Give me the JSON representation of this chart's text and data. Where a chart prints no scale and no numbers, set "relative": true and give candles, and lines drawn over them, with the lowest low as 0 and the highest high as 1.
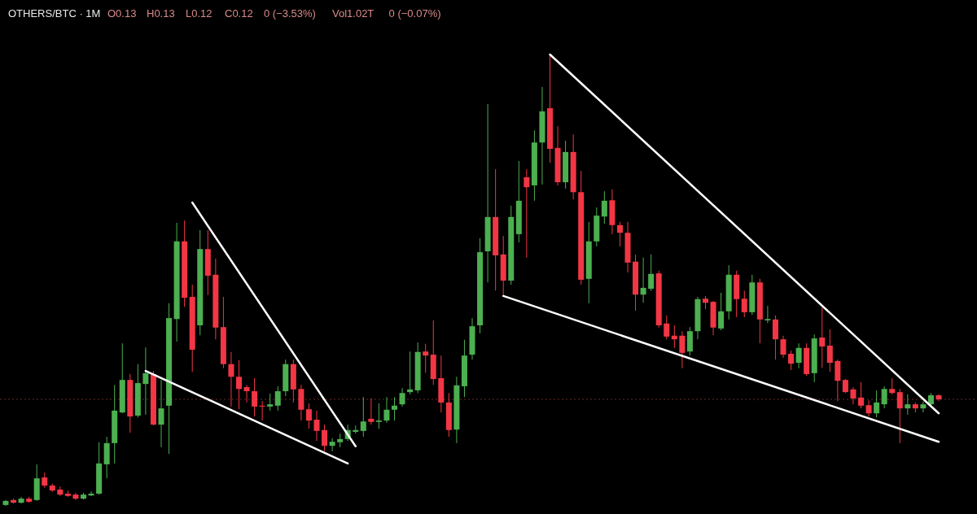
{
  "chart_data": {
    "type": "candlestick",
    "title": "OTHERS/BTC · 1M",
    "relative": true,
    "annotations": [
      "O0.13",
      "H0.13",
      "L0.12",
      "C0.12",
      "0 (−3.53%)",
      "Vol1.02T",
      "0 (−0.07%)"
    ],
    "categories": [
      null,
      null,
      null,
      null,
      null,
      null,
      null,
      null,
      null,
      null,
      null,
      null,
      null,
      null,
      null,
      null,
      null,
      null,
      null,
      null,
      null,
      null,
      null,
      null,
      null,
      null,
      null,
      null,
      null,
      null,
      null,
      null,
      null,
      null,
      null,
      null,
      null,
      null,
      null,
      null,
      null,
      null,
      null,
      null,
      null,
      null,
      null,
      null,
      null,
      null,
      null,
      null,
      null,
      null,
      null,
      null,
      null,
      null,
      null,
      null,
      null,
      null,
      null,
      null,
      null,
      null,
      null,
      null,
      null,
      null,
      null,
      null,
      null,
      null,
      null,
      null,
      null,
      null,
      null,
      null,
      null,
      null,
      null,
      null,
      null,
      null,
      null,
      null,
      null,
      null,
      null,
      null,
      null,
      null,
      null,
      null,
      null,
      null,
      null,
      null,
      null,
      null,
      null,
      null,
      null,
      null,
      null,
      null,
      null,
      null,
      null,
      null,
      null,
      null,
      null,
      null,
      null,
      null,
      null,
      null,
      null
    ],
    "ohlc": [
      [
        0.002,
        0.013,
        0,
        0.011
      ],
      [
        0.013,
        0.016,
        0.005,
        0.007
      ],
      [
        0.007,
        0.02,
        0.005,
        0.016
      ],
      [
        0.016,
        0.02,
        0.007,
        0.009
      ],
      [
        0.013,
        0.092,
        0.011,
        0.061
      ],
      [
        0.063,
        0.074,
        0.04,
        0.045
      ],
      [
        0.045,
        0.049,
        0.031,
        0.034
      ],
      [
        0.036,
        0.043,
        0.022,
        0.025
      ],
      [
        0.027,
        0.034,
        0.02,
        0.022
      ],
      [
        0.025,
        0.029,
        0.013,
        0.016
      ],
      [
        0.016,
        0.029,
        0.014,
        0.025
      ],
      [
        0.023,
        0.032,
        0.022,
        0.027
      ],
      [
        0.027,
        0.141,
        0.025,
        0.094
      ],
      [
        0.092,
        0.153,
        0.061,
        0.139
      ],
      [
        0.139,
        0.268,
        0.094,
        0.211
      ],
      [
        0.207,
        0.36,
        0.205,
        0.279
      ],
      [
        0.279,
        0.292,
        0.162,
        0.198
      ],
      [
        0.2,
        0.314,
        0.196,
        0.272
      ],
      [
        0.27,
        0.351,
        0.202,
        0.294
      ],
      [
        0.292,
        0.299,
        0.178,
        0.18
      ],
      [
        0.18,
        0.279,
        0.13,
        0.216
      ],
      [
        0.222,
        0.449,
        0.115,
        0.416
      ],
      [
        0.414,
        0.627,
        0.364,
        0.586
      ],
      [
        0.586,
        0.632,
        0.441,
        0.461
      ],
      [
        0.463,
        0.49,
        0.297,
        0.346
      ],
      [
        0.4,
        0.611,
        0.378,
        0.569
      ],
      [
        0.569,
        0.611,
        0.467,
        0.51
      ],
      [
        0.512,
        0.548,
        0.369,
        0.395
      ],
      [
        0.396,
        0.463,
        0.305,
        0.314
      ],
      [
        0.314,
        0.341,
        0.22,
        0.286
      ],
      [
        0.286,
        0.323,
        0.214,
        0.259
      ],
      [
        0.263,
        0.268,
        0.229,
        0.254
      ],
      [
        0.254,
        0.283,
        0.198,
        0.22
      ],
      [
        0.222,
        0.232,
        0.189,
        0.22
      ],
      [
        0.22,
        0.249,
        0.211,
        0.225
      ],
      [
        0.222,
        0.265,
        0.211,
        0.254
      ],
      [
        0.254,
        0.324,
        0.243,
        0.314
      ],
      [
        0.314,
        0.324,
        0.229,
        0.258
      ],
      [
        0.259,
        0.268,
        0.189,
        0.213
      ],
      [
        0.214,
        0.227,
        0.171,
        0.189
      ],
      [
        0.191,
        0.211,
        0.144,
        0.166
      ],
      [
        0.168,
        0.18,
        0.121,
        0.133
      ],
      [
        0.133,
        0.15,
        0.121,
        0.142
      ],
      [
        0.141,
        0.16,
        0.13,
        0.148
      ],
      [
        0.148,
        0.18,
        0.144,
        0.168
      ],
      [
        0.164,
        0.178,
        0.16,
        0.168
      ],
      [
        0.166,
        0.241,
        0.153,
        0.187
      ],
      [
        0.193,
        0.238,
        0.18,
        0.186
      ],
      [
        0.186,
        0.227,
        0.171,
        0.189
      ],
      [
        0.189,
        0.241,
        0.184,
        0.213
      ],
      [
        0.213,
        0.241,
        0.189,
        0.222
      ],
      [
        0.225,
        0.261,
        0.22,
        0.25
      ],
      [
        0.252,
        0.342,
        0.247,
        0.258
      ],
      [
        0.256,
        0.362,
        0.25,
        0.341
      ],
      [
        0.342,
        0.359,
        0.295,
        0.333
      ],
      [
        0.335,
        0.411,
        0.268,
        0.281
      ],
      [
        0.283,
        0.333,
        0.207,
        0.229
      ],
      [
        0.229,
        0.25,
        0.153,
        0.168
      ],
      [
        0.169,
        0.286,
        0.139,
        0.267
      ],
      [
        0.265,
        0.368,
        0.241,
        0.333
      ],
      [
        0.335,
        0.416,
        0.324,
        0.398
      ],
      [
        0.4,
        0.593,
        0.382,
        0.562
      ],
      [
        0.564,
        0.89,
        0.495,
        0.64
      ],
      [
        0.64,
        0.746,
        0.477,
        0.555
      ],
      [
        0.557,
        0.598,
        0.467,
        0.499
      ],
      [
        0.499,
        0.665,
        0.49,
        0.64
      ],
      [
        0.602,
        0.764,
        0.584,
        0.676
      ],
      [
        0.728,
        0.746,
        0.55,
        0.706
      ],
      [
        0.71,
        0.832,
        0.676,
        0.805
      ],
      [
        0.805,
        0.928,
        0.712,
        0.874
      ],
      [
        0.881,
        1,
        0.76,
        0.791
      ],
      [
        0.793,
        0.841,
        0.71,
        0.717
      ],
      [
        0.717,
        0.809,
        0.703,
        0.784
      ],
      [
        0.784,
        0.823,
        0.679,
        0.695
      ],
      [
        0.695,
        0.742,
        0.49,
        0.501
      ],
      [
        0.503,
        0.629,
        0.449,
        0.586
      ],
      [
        0.586,
        0.661,
        0.575,
        0.643
      ],
      [
        0.641,
        0.697,
        0.625,
        0.676
      ],
      [
        0.677,
        0.701,
        0.602,
        0.622
      ],
      [
        0.622,
        0.629,
        0.575,
        0.605
      ],
      [
        0.605,
        0.629,
        0.517,
        0.539
      ],
      [
        0.541,
        0.557,
        0.432,
        0.468
      ],
      [
        0.468,
        0.55,
        0.45,
        0.483
      ],
      [
        0.481,
        0.557,
        0.476,
        0.514
      ],
      [
        0.515,
        0.521,
        0.395,
        0.4
      ],
      [
        0.404,
        0.422,
        0.369,
        0.375
      ],
      [
        0.377,
        0.4,
        0.35,
        0.369
      ],
      [
        0.377,
        0.387,
        0.305,
        0.339
      ],
      [
        0.342,
        0.396,
        0.333,
        0.387
      ],
      [
        0.387,
        0.463,
        0.369,
        0.458
      ],
      [
        0.459,
        0.465,
        0.436,
        0.45
      ],
      [
        0.452,
        0.454,
        0.378,
        0.395
      ],
      [
        0.393,
        0.472,
        0.389,
        0.431
      ],
      [
        0.431,
        0.533,
        0.413,
        0.512
      ],
      [
        0.512,
        0.521,
        0.418,
        0.458
      ],
      [
        0.459,
        0.477,
        0.418,
        0.429
      ],
      [
        0.429,
        0.512,
        0.423,
        0.495
      ],
      [
        0.495,
        0.503,
        0.36,
        0.413
      ],
      [
        0.411,
        0.443,
        0.405,
        0.414
      ],
      [
        0.413,
        0.422,
        0.324,
        0.369
      ],
      [
        0.369,
        0.377,
        0.328,
        0.335
      ],
      [
        0.337,
        0.344,
        0.301,
        0.315
      ],
      [
        0.317,
        0.36,
        0.305,
        0.35
      ],
      [
        0.35,
        0.36,
        0.288,
        0.292
      ],
      [
        0.294,
        0.38,
        0.274,
        0.371
      ],
      [
        0.373,
        0.44,
        0.306,
        0.353
      ],
      [
        0.355,
        0.391,
        0.297,
        0.317
      ],
      [
        0.321,
        0.324,
        0.232,
        0.277
      ],
      [
        0.279,
        0.281,
        0.25,
        0.252
      ],
      [
        0.258,
        0.263,
        0.225,
        0.238
      ],
      [
        0.24,
        0.274,
        0.216,
        0.222
      ],
      [
        0.223,
        0.234,
        0.198,
        0.205
      ],
      [
        0.205,
        0.256,
        0.196,
        0.229
      ],
      [
        0.225,
        0.265,
        0.216,
        0.259
      ],
      [
        0.259,
        0.283,
        0.247,
        0.25
      ],
      [
        0.252,
        0.259,
        0.139,
        0.216
      ],
      [
        0.216,
        0.247,
        0.202,
        0.225
      ],
      [
        0.225,
        0.229,
        0.207,
        0.216
      ],
      [
        0.216,
        0.231,
        0.207,
        0.225
      ],
      [
        0.225,
        0.25,
        0.22,
        0.245
      ],
      [
        0.245,
        0.247,
        0.232,
        0.236
      ]
    ],
    "series": [
      {
        "type": "line",
        "color": "#ffffff",
        "values": [
          null,
          null,
          null,
          null,
          null,
          null,
          null,
          null,
          null,
          null,
          null,
          null,
          null,
          null,
          null,
          null,
          null,
          null,
          0.299,
          null,
          null,
          null,
          null,
          null,
          null,
          null,
          null,
          null,
          null,
          null,
          null,
          null,
          null,
          null,
          null,
          null,
          null,
          null,
          null,
          null,
          null,
          null,
          null,
          null,
          0.094,
          null,
          null,
          null,
          null,
          null,
          null,
          null,
          null,
          null,
          null,
          null,
          null,
          null,
          null,
          null,
          null,
          null,
          null,
          null,
          null,
          null,
          null,
          null,
          null,
          null,
          null,
          null,
          null,
          null,
          null,
          null,
          null,
          null,
          null,
          null,
          null,
          null,
          null,
          null,
          null,
          null,
          null,
          null,
          null,
          null,
          null,
          null,
          null,
          null,
          null,
          null,
          null,
          null,
          null,
          null,
          null,
          null,
          null,
          null,
          null,
          null,
          null,
          null,
          null,
          null,
          null,
          null,
          null,
          null,
          null,
          null,
          null,
          null,
          null,
          null,
          null
        ]
      },
      {
        "type": "line",
        "color": "#ffffff",
        "values": [
          null,
          null,
          null,
          null,
          null,
          null,
          null,
          null,
          null,
          null,
          null,
          null,
          null,
          null,
          null,
          null,
          null,
          null,
          null,
          null,
          null,
          null,
          null,
          null,
          0.672,
          null,
          null,
          null,
          null,
          null,
          null,
          null,
          null,
          null,
          null,
          null,
          null,
          null,
          null,
          null,
          null,
          null,
          null,
          null,
          null,
          0.132,
          null,
          null,
          null,
          null,
          null,
          null,
          null,
          null,
          null,
          null,
          null,
          null,
          null,
          null,
          null,
          null,
          null,
          null,
          null,
          null,
          null,
          null,
          null,
          null,
          null,
          null,
          null,
          null,
          null,
          null,
          null,
          null,
          null,
          null,
          null,
          null,
          null,
          null,
          null,
          null,
          null,
          null,
          null,
          null,
          null,
          null,
          null,
          null,
          null,
          null,
          null,
          null,
          null,
          null,
          null,
          null,
          null,
          null,
          null,
          null,
          null,
          null,
          null,
          null,
          null,
          null,
          null,
          null,
          null,
          null,
          null,
          null,
          null,
          null,
          null
        ]
      },
      {
        "type": "line",
        "color": "#ffffff",
        "values": [
          null,
          null,
          null,
          null,
          null,
          null,
          null,
          null,
          null,
          null,
          null,
          null,
          null,
          null,
          null,
          null,
          null,
          null,
          null,
          null,
          null,
          null,
          null,
          null,
          null,
          null,
          null,
          null,
          null,
          null,
          null,
          null,
          null,
          null,
          null,
          null,
          null,
          null,
          null,
          null,
          null,
          null,
          null,
          null,
          null,
          null,
          null,
          null,
          null,
          null,
          null,
          null,
          null,
          null,
          null,
          null,
          null,
          null,
          null,
          null,
          null,
          null,
          null,
          null,
          null,
          null,
          null,
          null,
          null,
          null,
          1,
          null,
          null,
          null,
          null,
          null,
          null,
          null,
          null,
          null,
          null,
          null,
          null,
          null,
          null,
          null,
          null,
          null,
          null,
          null,
          null,
          null,
          null,
          null,
          null,
          null,
          null,
          null,
          null,
          null,
          null,
          null,
          null,
          null,
          null,
          null,
          null,
          null,
          null,
          null,
          null,
          null,
          null,
          null,
          null,
          null,
          null,
          null,
          null,
          null,
          0.205
        ]
      },
      {
        "type": "line",
        "color": "#ffffff",
        "values": [
          null,
          null,
          null,
          null,
          null,
          null,
          null,
          null,
          null,
          null,
          null,
          null,
          null,
          null,
          null,
          null,
          null,
          null,
          null,
          null,
          null,
          null,
          null,
          null,
          null,
          null,
          null,
          null,
          null,
          null,
          null,
          null,
          null,
          null,
          null,
          null,
          null,
          null,
          null,
          null,
          null,
          null,
          null,
          null,
          null,
          null,
          null,
          null,
          null,
          null,
          null,
          null,
          null,
          null,
          null,
          null,
          null,
          null,
          null,
          null,
          null,
          null,
          null,
          null,
          0.465,
          null,
          null,
          null,
          null,
          null,
          null,
          null,
          null,
          null,
          null,
          null,
          null,
          null,
          null,
          null,
          null,
          null,
          null,
          null,
          null,
          null,
          null,
          null,
          null,
          null,
          null,
          null,
          null,
          null,
          null,
          null,
          null,
          null,
          null,
          null,
          null,
          null,
          null,
          null,
          null,
          null,
          null,
          null,
          null,
          null,
          null,
          null,
          null,
          null,
          null,
          null,
          null,
          null,
          null,
          null,
          0.142
        ]
      }
    ],
    "ref_lines": [
      {
        "axis": "y",
        "value": 0.236,
        "color": "#6b2a2a",
        "line_style": "dotted"
      }
    ]
  }
}
